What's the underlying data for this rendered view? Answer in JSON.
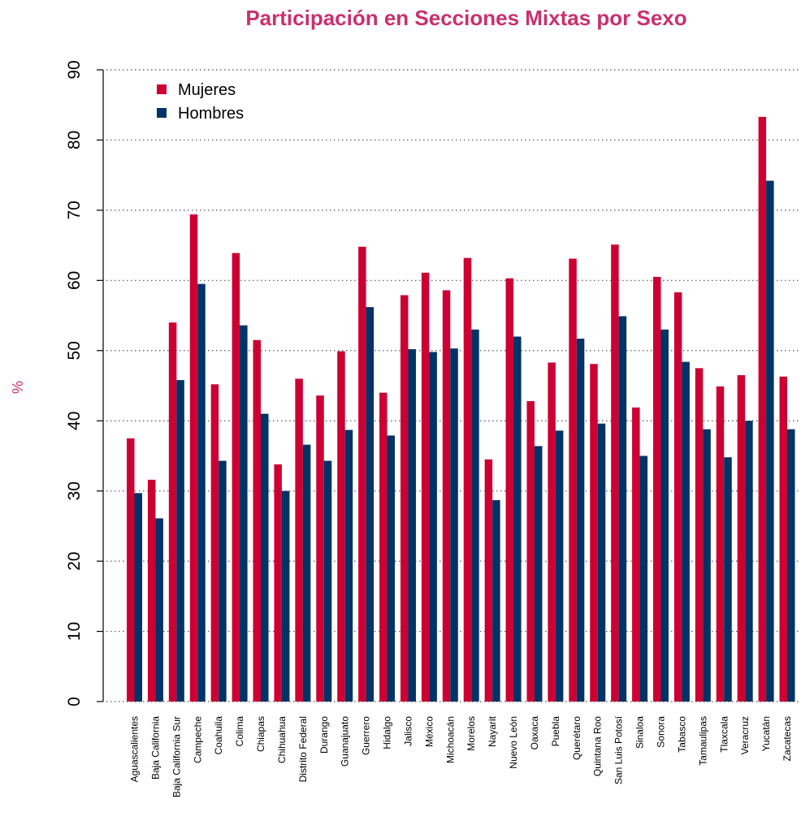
{
  "chart_data": {
    "type": "bar",
    "title": "Participación en Secciones Mixtas por Sexo",
    "xlabel": "",
    "ylabel": "%",
    "ylim": [
      0,
      90
    ],
    "yticks": [
      0,
      10,
      20,
      30,
      40,
      50,
      60,
      70,
      80,
      90
    ],
    "grid": "horizontal dotted",
    "legend_position": "top-left",
    "categories": [
      "Aguascalientes",
      "Baja California",
      "Baja California Sur",
      "Campeche",
      "Coahuila",
      "Colima",
      "Chiapas",
      "Chihuahua",
      "Distrito Federal",
      "Durango",
      "Guanajuato",
      "Guerrero",
      "Hidalgo",
      "Jalisco",
      "México",
      "Michoacán",
      "Morelos",
      "Nayarit",
      "Nuevo León",
      "Oaxaca",
      "Puebla",
      "Querétaro",
      "Quintana Roo",
      "San Luis Potosí",
      "Sinaloa",
      "Sonora",
      "Tabasco",
      "Tamaulipas",
      "Tlaxcala",
      "Veracruz",
      "Yucatán",
      "Zacatecas"
    ],
    "series": [
      {
        "name": "Mujeres",
        "color": "#cc0033",
        "values": [
          37.5,
          31.6,
          54.0,
          69.4,
          45.2,
          63.9,
          51.5,
          33.8,
          46.0,
          43.6,
          49.9,
          64.8,
          44.0,
          57.9,
          61.1,
          58.6,
          63.2,
          34.5,
          60.3,
          42.8,
          48.3,
          63.1,
          48.1,
          65.1,
          41.9,
          60.5,
          58.3,
          47.5,
          44.9,
          46.5,
          83.3,
          46.3
        ]
      },
      {
        "name": "Hombres",
        "color": "#003366",
        "values": [
          29.7,
          26.1,
          45.8,
          59.5,
          34.3,
          53.6,
          41.0,
          30.0,
          36.6,
          34.3,
          38.7,
          56.2,
          37.9,
          50.2,
          49.8,
          50.3,
          53.0,
          28.7,
          52.0,
          36.4,
          38.6,
          51.7,
          39.6,
          54.9,
          35.0,
          53.0,
          48.4,
          38.8,
          34.8,
          40.0,
          74.2,
          38.8
        ]
      }
    ]
  },
  "colors": {
    "title": "#c9306f",
    "ylabel": "#c9306f",
    "axis": "#000000",
    "grid": "#555555"
  }
}
